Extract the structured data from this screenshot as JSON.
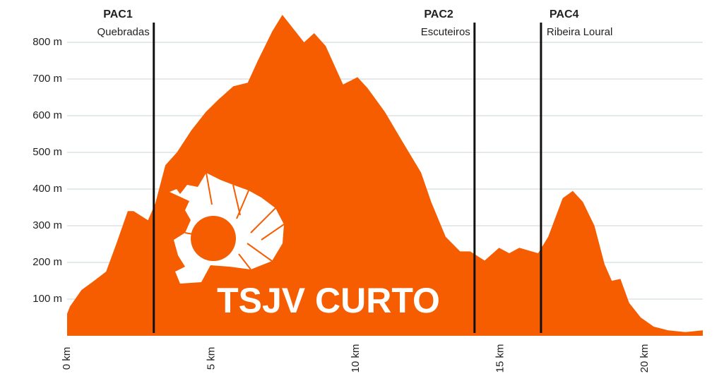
{
  "chart_data": {
    "type": "area",
    "annotation": "TSJV CURTO",
    "color": "#f55d00",
    "x": [
      0,
      0.1,
      0.5,
      0.85,
      1.35,
      1.7,
      2.1,
      2.3,
      2.8,
      3.05,
      3.4,
      3.8,
      4.3,
      4.8,
      5.25,
      5.75,
      6.25,
      6.6,
      7.1,
      7.45,
      7.7,
      8.2,
      8.55,
      8.95,
      9.55,
      10.05,
      10.4,
      11.0,
      11.6,
      12.25,
      12.6,
      13.1,
      13.6,
      13.95,
      14.45,
      14.95,
      15.3,
      15.65,
      16.3,
      16.65,
      17.15,
      17.5,
      17.85,
      18.25,
      18.6,
      18.85,
      19.15,
      19.45,
      19.85,
      20.3,
      20.8,
      21.4,
      22.0
    ],
    "values": [
      60,
      80,
      125,
      145,
      175,
      250,
      340,
      340,
      315,
      360,
      465,
      500,
      560,
      610,
      645,
      680,
      690,
      750,
      830,
      875,
      850,
      800,
      825,
      790,
      685,
      705,
      675,
      610,
      530,
      445,
      365,
      270,
      230,
      230,
      205,
      240,
      225,
      240,
      225,
      270,
      375,
      395,
      365,
      300,
      195,
      150,
      155,
      90,
      50,
      25,
      15,
      10,
      15
    ],
    "xlim": [
      0,
      22
    ],
    "xticks": [
      {
        "value": 0,
        "label": "0 km"
      },
      {
        "value": 5,
        "label": "5 km"
      },
      {
        "value": 10,
        "label": "10 km"
      },
      {
        "value": 15,
        "label": "15 km"
      },
      {
        "value": 20,
        "label": "20 km"
      }
    ],
    "ylim": [
      0,
      880
    ],
    "yticks": [
      {
        "value": 100,
        "label": "100 m"
      },
      {
        "value": 200,
        "label": "200 m"
      },
      {
        "value": 300,
        "label": "300 m"
      },
      {
        "value": 400,
        "label": "400 m"
      },
      {
        "value": 500,
        "label": "500 m"
      },
      {
        "value": 600,
        "label": "600 m"
      },
      {
        "value": 700,
        "label": "700 m"
      },
      {
        "value": 800,
        "label": "800 m"
      }
    ],
    "grid": true,
    "markers": [
      {
        "x": 3.0,
        "label": "PAC1",
        "sublabel": "Quebradas",
        "align": "end"
      },
      {
        "x": 14.1,
        "label": "PAC2",
        "sublabel": "Escuteiros",
        "align": "end"
      },
      {
        "x": 16.4,
        "label": "PAC4",
        "sublabel": "Ribeira Loural",
        "align": "start"
      }
    ]
  }
}
